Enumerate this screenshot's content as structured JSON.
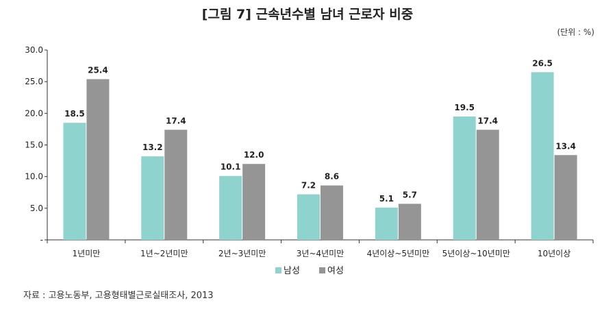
{
  "chart_data": {
    "type": "bar",
    "title": "[그림 7] 근속년수별 남녀 근로자 비중",
    "unit": "(단위 : %)",
    "categories": [
      "1년미만",
      "1년~2년미만",
      "2년~3년미만",
      "3년~4년미만",
      "4년이상~5년미만",
      "5년이상~10년미만",
      "10년이상"
    ],
    "series": [
      {
        "name": "남성",
        "color": "#8fd3cf",
        "values": [
          18.5,
          13.2,
          10.1,
          7.2,
          5.1,
          19.5,
          26.5
        ]
      },
      {
        "name": "여성",
        "color": "#959595",
        "values": [
          25.4,
          17.4,
          12.0,
          8.6,
          5.7,
          17.4,
          13.4
        ]
      }
    ],
    "value_labels": [
      [
        "18.5",
        "13.2",
        "10.1",
        "7.2",
        "5.1",
        "19.5",
        "26.5"
      ],
      [
        "25.4",
        "17.4",
        "12.0",
        "8.6",
        "5.7",
        "17.4",
        "13.4"
      ]
    ],
    "yticks": [
      0,
      5,
      10,
      15,
      20,
      25,
      30
    ],
    "ytick_labels": [
      "-",
      "5.0",
      "10.0",
      "15.0",
      "20.0",
      "25.0",
      "30.0"
    ],
    "ylim": [
      0,
      30
    ],
    "xlabel": "",
    "ylabel": "",
    "legend": "bottom-left",
    "grid": false
  },
  "source": "자료 : 고용노동부, 고용형태별근로실태조사, 2013"
}
